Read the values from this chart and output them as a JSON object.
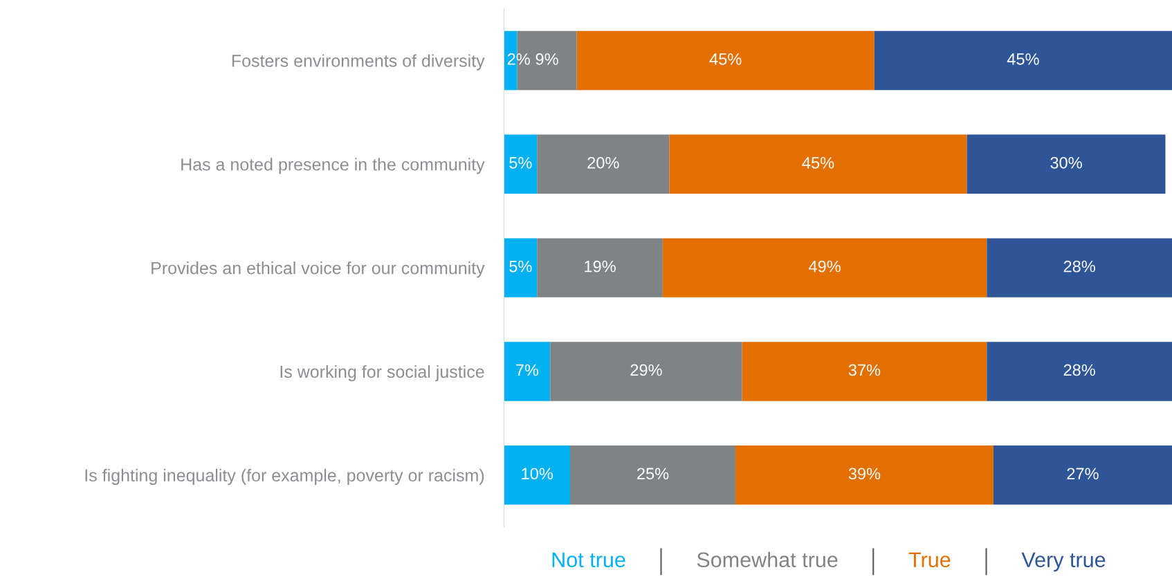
{
  "chart_data": {
    "type": "bar",
    "orientation": "horizontal",
    "stacked": true,
    "legend": "bottom",
    "grid": false,
    "categories": [
      "Fosters environments of diversity",
      "Has a noted presence in the community",
      "Provides an ethical voice for our community",
      "Is working for social justice",
      "Is fighting inequality (for example, poverty or racism)"
    ],
    "series": [
      {
        "name": "Not true",
        "color": "#00b0f0",
        "values": [
          2,
          5,
          5,
          7,
          10
        ],
        "value_labels": [
          "2%",
          "5%",
          "5%",
          "7%",
          "10%"
        ]
      },
      {
        "name": "Somewhat true",
        "color": "#7f8385",
        "values": [
          9,
          20,
          19,
          29,
          25
        ],
        "value_labels": [
          "9%",
          "20%",
          "19%",
          "29%",
          "25%"
        ]
      },
      {
        "name": "True",
        "color": "#e36f00",
        "values": [
          45,
          45,
          49,
          37,
          39
        ],
        "value_labels": [
          "45%",
          "45%",
          "49%",
          "37%",
          "39%"
        ]
      },
      {
        "name": "Very true",
        "color": "#2e5597",
        "values": [
          45,
          30,
          28,
          28,
          27
        ],
        "value_labels": [
          "45%",
          "30%",
          "28%",
          "28%",
          "27%"
        ]
      }
    ]
  }
}
